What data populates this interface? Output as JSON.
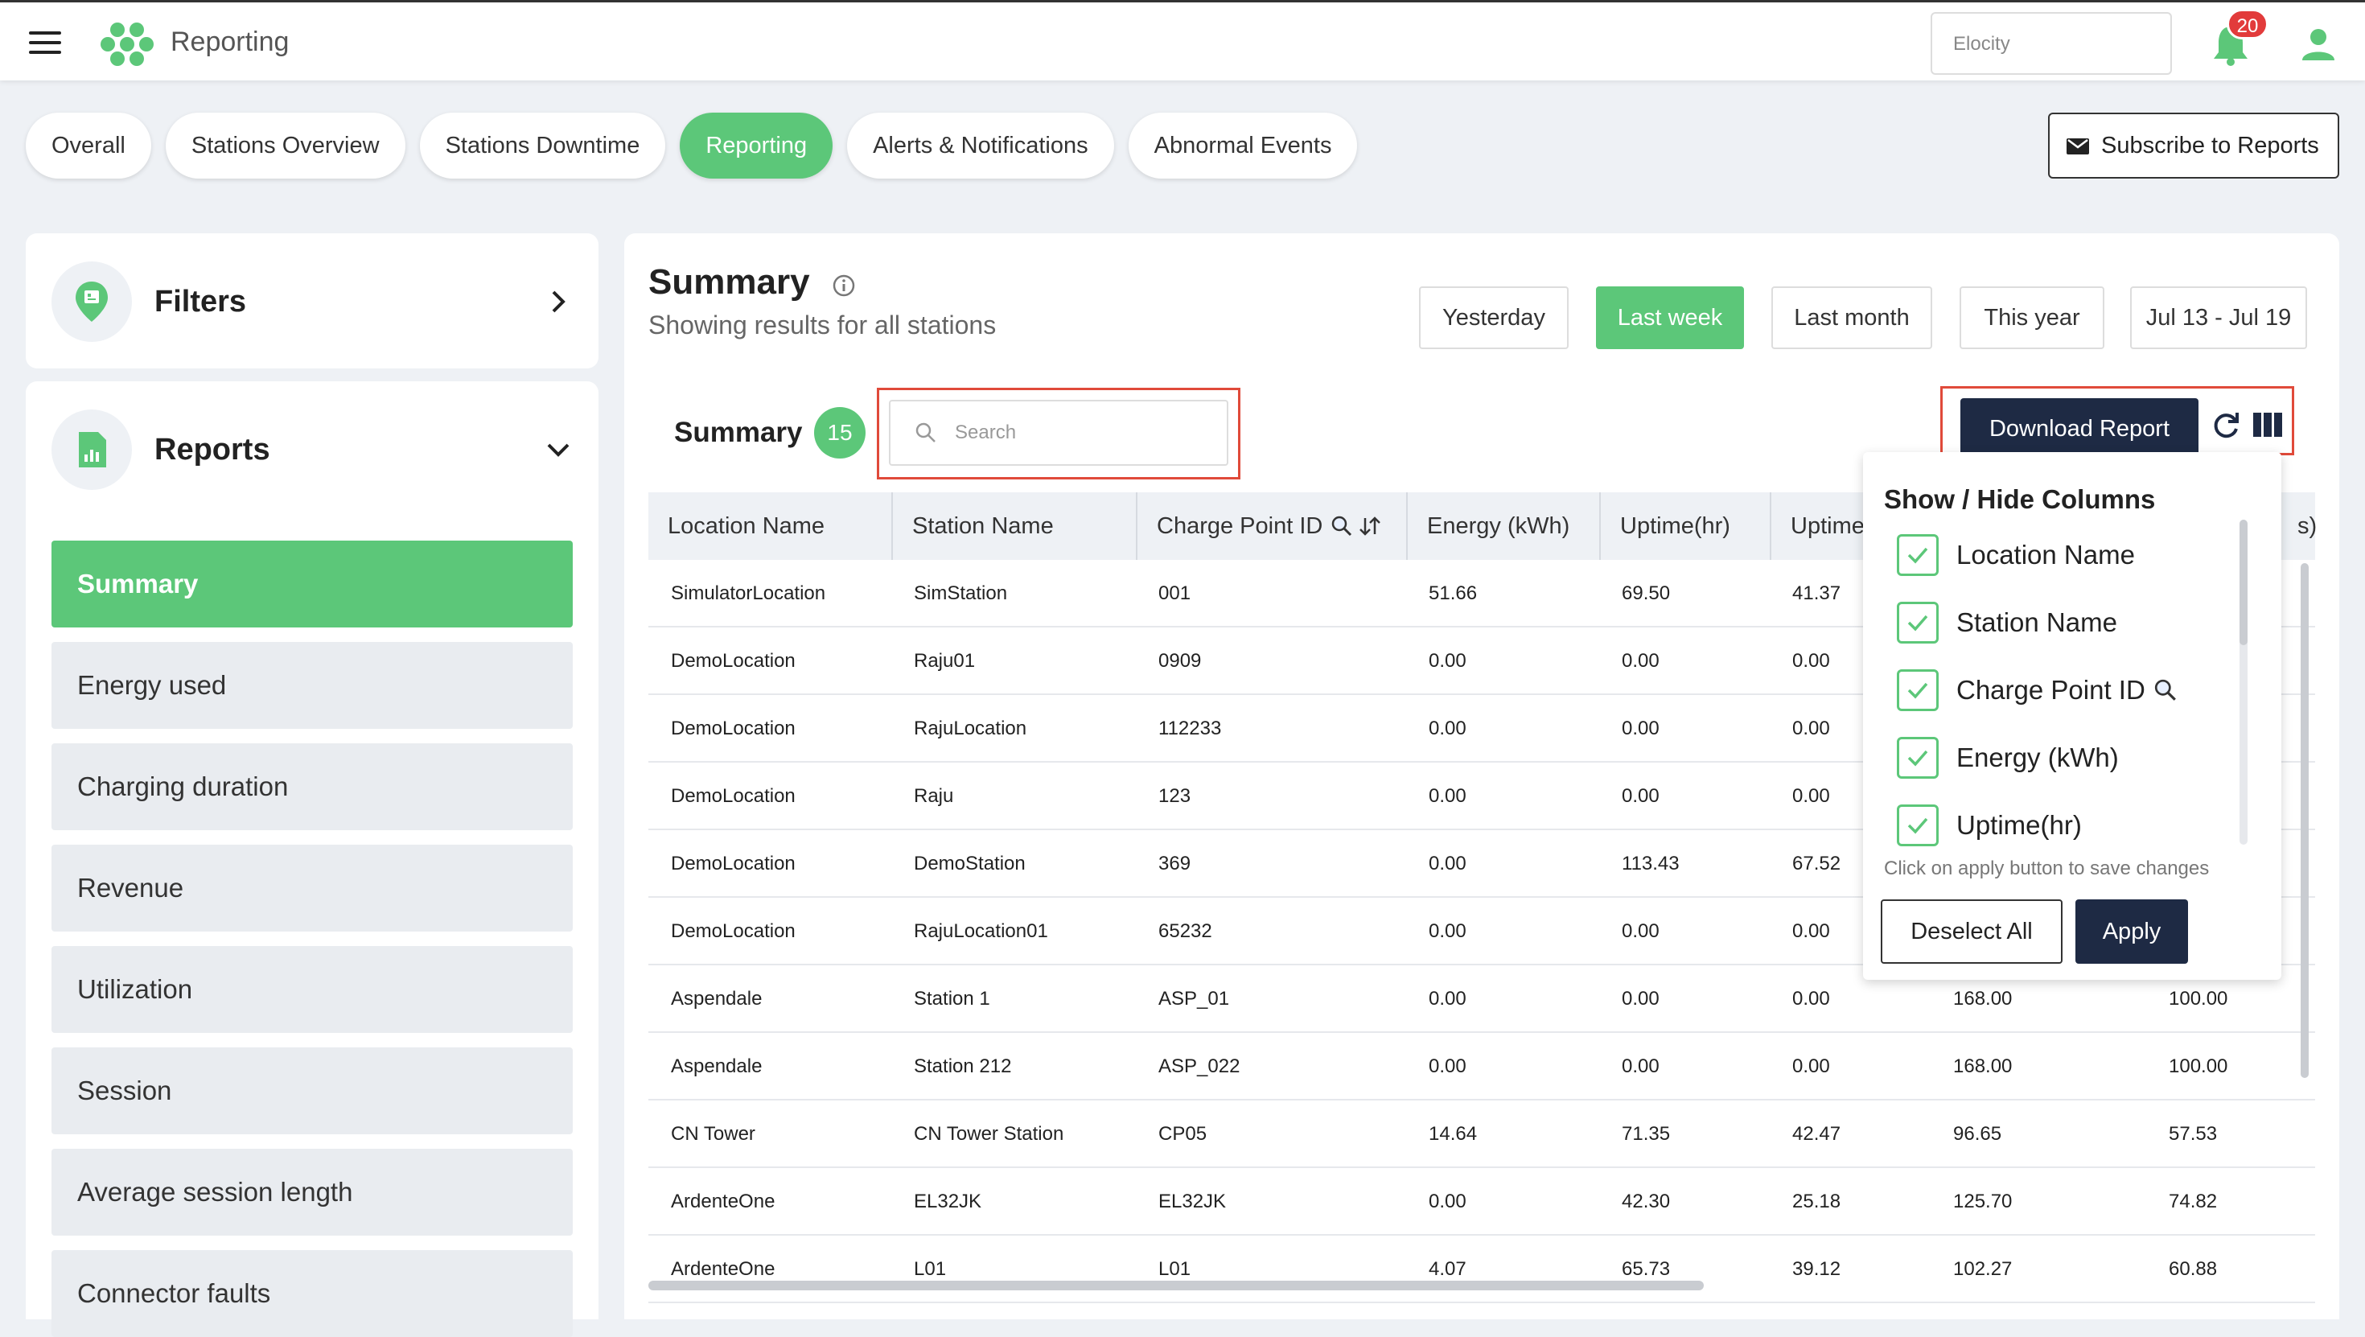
{
  "header": {
    "app_title": "Reporting",
    "org_placeholder": "Elocity",
    "notification_count": "20"
  },
  "tabs": [
    {
      "label": "Overall",
      "active": false
    },
    {
      "label": "Stations Overview",
      "active": false
    },
    {
      "label": "Stations Downtime",
      "active": false
    },
    {
      "label": "Reporting",
      "active": true
    },
    {
      "label": "Alerts & Notifications",
      "active": false
    },
    {
      "label": "Abnormal Events",
      "active": false
    }
  ],
  "subscribe_label": "Subscribe to Reports",
  "sidebar": {
    "filters_title": "Filters",
    "reports_title": "Reports",
    "items": [
      {
        "label": "Summary",
        "active": true
      },
      {
        "label": "Energy used",
        "active": false
      },
      {
        "label": "Charging duration",
        "active": false
      },
      {
        "label": "Revenue",
        "active": false
      },
      {
        "label": "Utilization",
        "active": false
      },
      {
        "label": "Session",
        "active": false
      },
      {
        "label": "Average session length",
        "active": false
      },
      {
        "label": "Connector faults",
        "active": false
      }
    ]
  },
  "main": {
    "title": "Summary",
    "subtitle": "Showing results for all stations",
    "ranges": [
      {
        "label": "Yesterday",
        "active": false
      },
      {
        "label": "Last week",
        "active": true
      },
      {
        "label": "Last month",
        "active": false
      },
      {
        "label": "This year",
        "active": false
      },
      {
        "label": "Jul 13 - Jul 19",
        "active": false
      }
    ],
    "table_title": "Summary",
    "count": "15",
    "search_placeholder": "Search",
    "download_label": "Download Report"
  },
  "table": {
    "headers": [
      "Location Name",
      "Station Name",
      "Charge Point ID",
      "Energy (kWh)",
      "Uptime(hr)",
      "Uptime",
      "s)"
    ],
    "rows": [
      [
        "SimulatorLocation",
        "SimStation",
        "001",
        "51.66",
        "69.50",
        "41.37",
        "",
        ""
      ],
      [
        "DemoLocation",
        "Raju01",
        "0909",
        "0.00",
        "0.00",
        "0.00",
        "",
        ""
      ],
      [
        "DemoLocation",
        "RajuLocation",
        "112233",
        "0.00",
        "0.00",
        "0.00",
        "",
        ""
      ],
      [
        "DemoLocation",
        "Raju",
        "123",
        "0.00",
        "0.00",
        "0.00",
        "",
        ""
      ],
      [
        "DemoLocation",
        "DemoStation",
        "369",
        "0.00",
        "113.43",
        "67.52",
        "",
        ""
      ],
      [
        "DemoLocation",
        "RajuLocation01",
        "65232",
        "0.00",
        "0.00",
        "0.00",
        "",
        ""
      ],
      [
        "Aspendale",
        "Station 1",
        "ASP_01",
        "0.00",
        "0.00",
        "0.00",
        "168.00",
        "100.00"
      ],
      [
        "Aspendale",
        "Station 212",
        "ASP_022",
        "0.00",
        "0.00",
        "0.00",
        "168.00",
        "100.00"
      ],
      [
        "CN Tower",
        "CN Tower Station",
        "CP05",
        "14.64",
        "71.35",
        "42.47",
        "96.65",
        "57.53"
      ],
      [
        "ArdenteOne",
        "EL32JK",
        "EL32JK",
        "0.00",
        "42.30",
        "25.18",
        "125.70",
        "74.82"
      ],
      [
        "ArdenteOne",
        "L01",
        "L01",
        "4.07",
        "65.73",
        "39.12",
        "102.27",
        "60.88"
      ]
    ]
  },
  "columns_dropdown": {
    "title": "Show / Hide Columns",
    "items": [
      {
        "label": "Location Name",
        "checked": true
      },
      {
        "label": "Station Name",
        "checked": true
      },
      {
        "label": "Charge Point ID",
        "checked": true
      },
      {
        "label": "Energy (kWh)",
        "checked": true
      },
      {
        "label": "Uptime(hr)",
        "checked": true
      }
    ],
    "hint": "Click on apply button to save changes",
    "deselect_label": "Deselect All",
    "apply_label": "Apply"
  },
  "colors": {
    "accent": "#5cc779",
    "dark": "#1e2a44",
    "highlight": "#e04a3a",
    "badge": "#e23b3b"
  }
}
